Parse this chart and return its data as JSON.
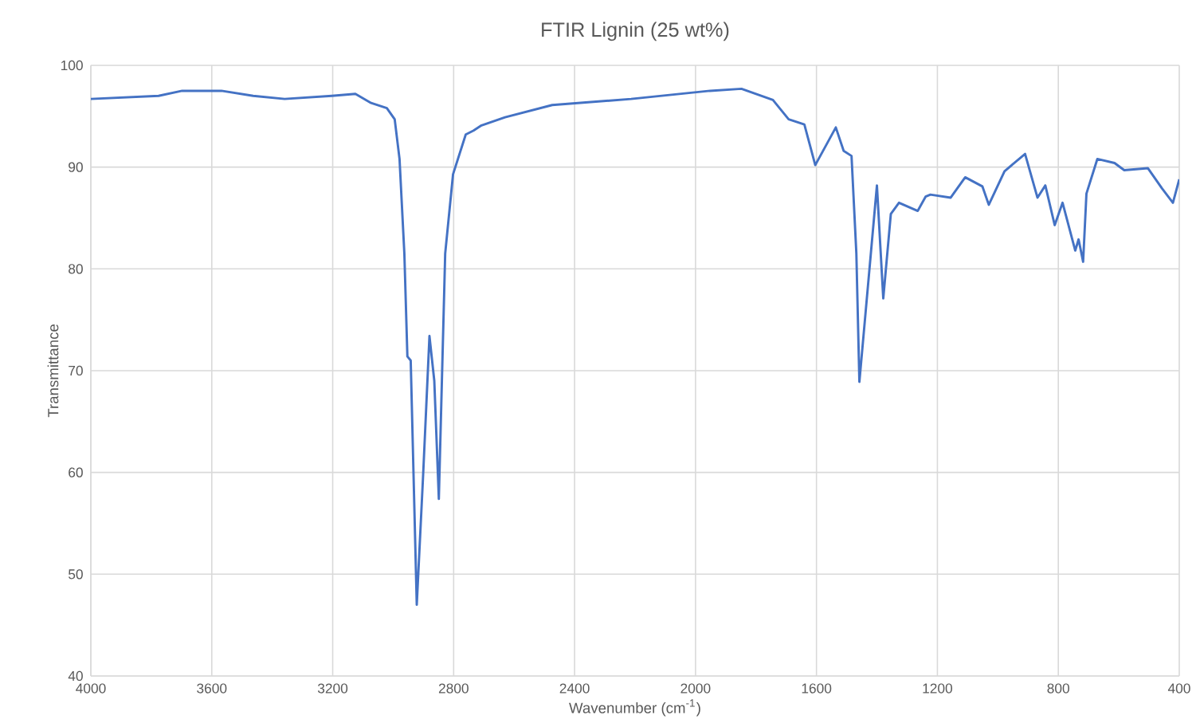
{
  "chart_data": {
    "type": "line",
    "title": "FTIR Lignin (25 wt%)",
    "xlabel": "Wavenumber (cm$^{-1}$)",
    "ylabel": "Transmittance",
    "x": [
      4000,
      3776,
      3698,
      3568,
      3463,
      3359,
      3203,
      3125,
      3073,
      3021,
      2995,
      2979,
      2963,
      2953,
      2942,
      2922,
      2901,
      2880,
      2864,
      2849,
      2828,
      2802,
      2760,
      2734,
      2708,
      2630,
      2474,
      2213,
      1952,
      1848,
      1744,
      1692,
      1640,
      1604,
      1536,
      1510,
      1484,
      1468,
      1458,
      1400,
      1379,
      1354,
      1327,
      1265,
      1239,
      1223,
      1156,
      1108,
      1051,
      1030,
      978,
      910,
      869,
      843,
      812,
      786,
      744,
      733,
      718,
      707,
      671,
      614,
      582,
      504,
      457,
      421,
      400
    ],
    "series": [
      {
        "color": "#4472c4",
        "values": [
          96.7,
          97.0,
          97.5,
          97.5,
          97.0,
          96.7,
          97.0,
          97.2,
          96.3,
          95.8,
          94.7,
          90.8,
          81.5,
          71.4,
          71.0,
          47.0,
          59.7,
          73.4,
          69.0,
          57.4,
          81.5,
          89.3,
          93.2,
          93.6,
          94.1,
          94.9,
          96.1,
          96.7,
          97.5,
          97.7,
          96.6,
          94.7,
          94.2,
          90.2,
          93.9,
          91.6,
          91.1,
          81.5,
          68.9,
          88.2,
          77.1,
          85.4,
          86.5,
          85.7,
          87.1,
          87.3,
          87.0,
          89.0,
          88.1,
          86.3,
          89.6,
          91.3,
          87.0,
          88.2,
          84.3,
          86.5,
          81.8,
          82.9,
          80.7,
          87.4,
          90.8,
          90.4,
          89.7,
          89.9,
          87.9,
          86.5,
          88.8
        ]
      }
    ],
    "xlim": [
      4000,
      400
    ],
    "xticks": [
      4000,
      3600,
      3200,
      2800,
      2400,
      2000,
      1600,
      1200,
      800,
      400
    ],
    "ylim": [
      40,
      100
    ],
    "yticks": [
      40,
      50,
      60,
      70,
      80,
      90,
      100
    ],
    "grid": true,
    "marker": "none",
    "line_style": "solid"
  }
}
